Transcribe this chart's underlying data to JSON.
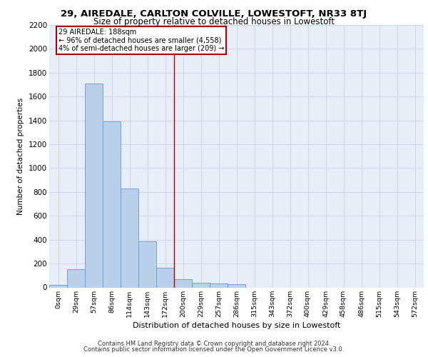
{
  "title_line1": "29, AIREDALE, CARLTON COLVILLE, LOWESTOFT, NR33 8TJ",
  "title_line2": "Size of property relative to detached houses in Lowestoft",
  "xlabel": "Distribution of detached houses by size in Lowestoft",
  "ylabel": "Number of detached properties",
  "bar_categories": [
    "0sqm",
    "29sqm",
    "57sqm",
    "86sqm",
    "114sqm",
    "143sqm",
    "172sqm",
    "200sqm",
    "229sqm",
    "257sqm",
    "286sqm",
    "315sqm",
    "343sqm",
    "372sqm",
    "400sqm",
    "429sqm",
    "458sqm",
    "486sqm",
    "515sqm",
    "543sqm",
    "572sqm"
  ],
  "bar_values": [
    20,
    155,
    1710,
    1390,
    830,
    385,
    165,
    70,
    40,
    30,
    28,
    0,
    0,
    0,
    0,
    0,
    0,
    0,
    0,
    0,
    0
  ],
  "bar_color": "#b8d0ea",
  "bar_edge_color": "#6699cc",
  "bg_color": "#e8eef8",
  "grid_color": "#d0d8e8",
  "vline_x": 7.0,
  "vline_color": "#aa0000",
  "annotation_text": "29 AIREDALE: 188sqm\n← 96% of detached houses are smaller (4,558)\n4% of semi-detached houses are larger (209) →",
  "annotation_box_color": "#aa0000",
  "annotation_bg": "white",
  "ylim": [
    0,
    2200
  ],
  "yticks": [
    0,
    200,
    400,
    600,
    800,
    1000,
    1200,
    1400,
    1600,
    1800,
    2000,
    2200
  ],
  "footer_line1": "Contains HM Land Registry data © Crown copyright and database right 2024.",
  "footer_line2": "Contains public sector information licensed under the Open Government Licence v3.0."
}
